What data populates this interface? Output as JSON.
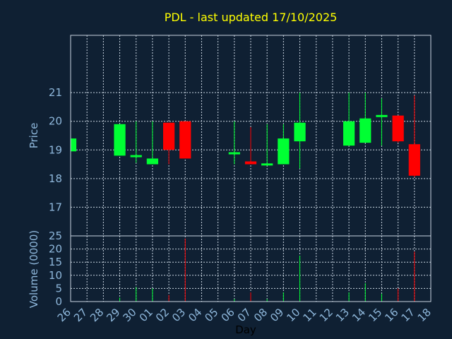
{
  "title": "PDL - last updated 17/10/2025",
  "colors": {
    "background": "#0f2033",
    "up": "#00ff33",
    "down": "#ff0000",
    "title": "#ffff00",
    "axis_text": "#8fb8dc",
    "grid": "#c8d4e0"
  },
  "chart_data": [
    {
      "type": "candlestick",
      "title": "PDL - last updated 17/10/2025",
      "ylabel": "Price",
      "ylim": [
        16,
        23
      ],
      "yticks": [
        17,
        18,
        19,
        20,
        21
      ],
      "grid": true,
      "categories": [
        "26",
        "27",
        "28",
        "29",
        "30",
        "01",
        "02",
        "03",
        "04",
        "05",
        "06",
        "07",
        "08",
        "09",
        "10",
        "13",
        "14",
        "15",
        "16",
        "17"
      ],
      "x_tick_labels": [
        "26",
        "27",
        "28",
        "29",
        "30",
        "01",
        "02",
        "03",
        "04",
        "05",
        "06",
        "07",
        "08",
        "09",
        "10",
        "11",
        "12",
        "13",
        "14",
        "15",
        "16",
        "17",
        "18"
      ],
      "candles": [
        {
          "day": "26",
          "open": 18.95,
          "high": 19.4,
          "low": 18.95,
          "close": 19.4
        },
        {
          "day": "29",
          "open": 18.8,
          "high": 19.9,
          "low": 18.8,
          "close": 19.9
        },
        {
          "day": "30",
          "open": 18.78,
          "high": 20.0,
          "low": 18.55,
          "close": 18.82
        },
        {
          "day": "01",
          "open": 18.5,
          "high": 20.0,
          "low": 18.5,
          "close": 18.7
        },
        {
          "day": "02",
          "open": 19.95,
          "high": 19.95,
          "low": 18.5,
          "close": 19.0
        },
        {
          "day": "03",
          "open": 20.0,
          "high": 20.0,
          "low": 18.7,
          "close": 18.7
        },
        {
          "day": "06",
          "open": 18.88,
          "high": 20.0,
          "low": 18.5,
          "close": 18.92
        },
        {
          "day": "07",
          "open": 18.6,
          "high": 19.8,
          "low": 18.5,
          "close": 18.5
        },
        {
          "day": "08",
          "open": 18.47,
          "high": 19.9,
          "low": 18.47,
          "close": 18.53
        },
        {
          "day": "09",
          "open": 18.5,
          "high": 19.9,
          "low": 18.5,
          "close": 19.4
        },
        {
          "day": "10",
          "open": 19.3,
          "high": 21.0,
          "low": 18.35,
          "close": 19.95
        },
        {
          "day": "13",
          "open": 19.15,
          "high": 21.0,
          "low": 19.15,
          "close": 20.0
        },
        {
          "day": "14",
          "open": 19.25,
          "high": 21.0,
          "low": 19.25,
          "close": 20.1
        },
        {
          "day": "15",
          "open": 20.17,
          "high": 20.8,
          "low": 19.15,
          "close": 20.22
        },
        {
          "day": "16",
          "open": 20.2,
          "high": 20.2,
          "low": 19.25,
          "close": 19.3
        },
        {
          "day": "17",
          "open": 19.2,
          "high": 20.9,
          "low": 18.05,
          "close": 18.1
        }
      ]
    },
    {
      "type": "bar",
      "ylabel": "Volume (0000)",
      "xlabel": "Day",
      "ylim": [
        0,
        25
      ],
      "yticks": [
        0,
        5,
        10,
        15,
        20,
        25
      ],
      "grid": true,
      "bars": [
        {
          "day": "26",
          "value": 0.3,
          "color": "up"
        },
        {
          "day": "29",
          "value": 1.5,
          "color": "up"
        },
        {
          "day": "30",
          "value": 5.5,
          "color": "up"
        },
        {
          "day": "01",
          "value": 5.0,
          "color": "up"
        },
        {
          "day": "02",
          "value": 2.5,
          "color": "down"
        },
        {
          "day": "03",
          "value": 24.0,
          "color": "down"
        },
        {
          "day": "06",
          "value": 1.0,
          "color": "up"
        },
        {
          "day": "07",
          "value": 3.5,
          "color": "down"
        },
        {
          "day": "08",
          "value": 1.0,
          "color": "up"
        },
        {
          "day": "09",
          "value": 3.5,
          "color": "up"
        },
        {
          "day": "10",
          "value": 17.5,
          "color": "up"
        },
        {
          "day": "13",
          "value": 3.5,
          "color": "up"
        },
        {
          "day": "14",
          "value": 7.0,
          "color": "up"
        },
        {
          "day": "15",
          "value": 3.0,
          "color": "up"
        },
        {
          "day": "16",
          "value": 5.0,
          "color": "down"
        },
        {
          "day": "17",
          "value": 19.0,
          "color": "down"
        }
      ]
    }
  ]
}
